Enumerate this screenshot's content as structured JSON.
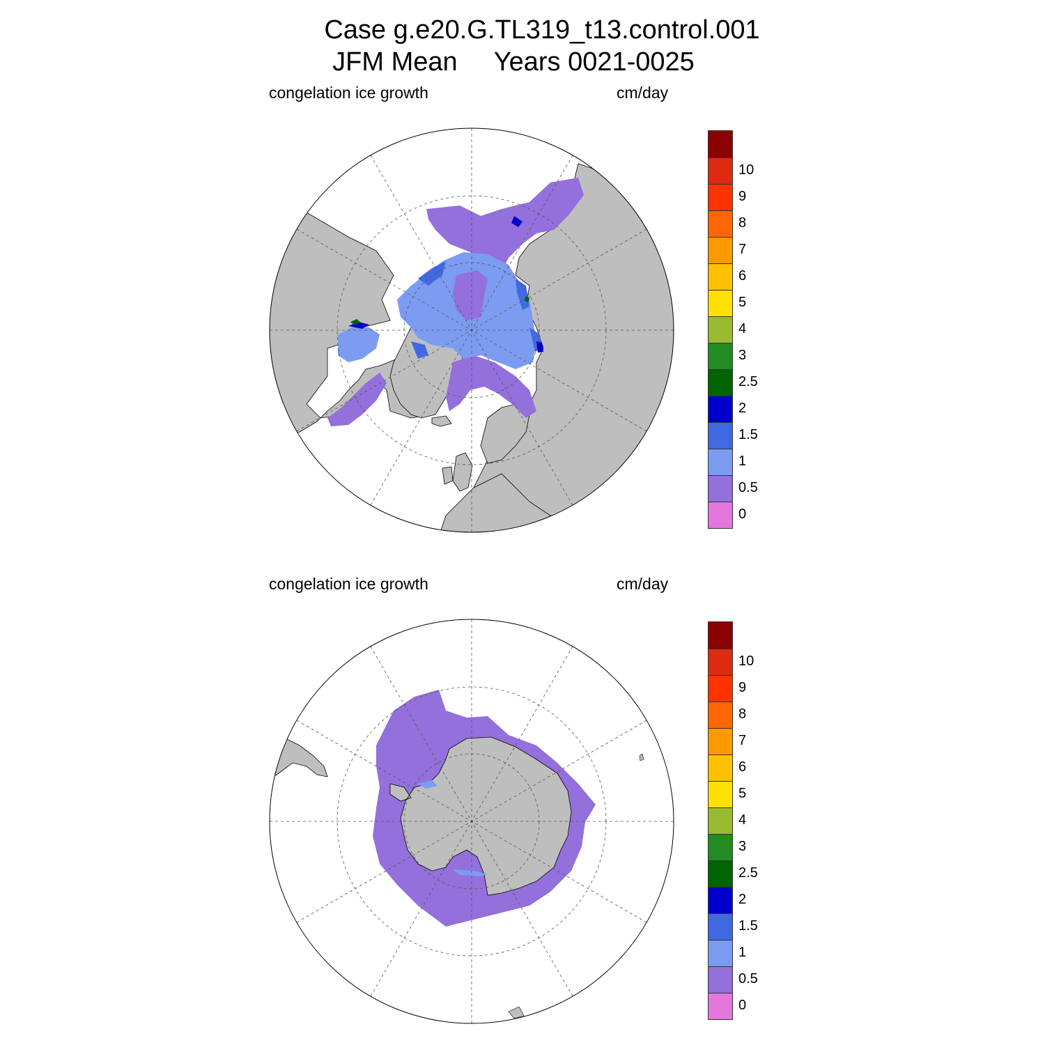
{
  "title": {
    "line1": "Case g.e20.G.TL319_t13.control.001",
    "line2": "JFM Mean     Years 0021-0025"
  },
  "panels": [
    {
      "id": "nh",
      "hemisphere": "north",
      "left_label": "congelation ice growth",
      "right_label": "cm/day"
    },
    {
      "id": "sh",
      "hemisphere": "south",
      "left_label": "congelation ice growth",
      "right_label": "cm/day"
    }
  ],
  "colorbar": {
    "labels": [
      "0",
      "0.5",
      "1",
      "1.5",
      "2",
      "2.5",
      "3",
      "4",
      "5",
      "6",
      "7",
      "8",
      "9",
      "10"
    ],
    "colors": [
      "#e377dd",
      "#9370db",
      "#7b9cf0",
      "#4169e1",
      "#0000cd",
      "#006400",
      "#228b22",
      "#9aba30",
      "#ffe000",
      "#ffc000",
      "#ff9900",
      "#ff6600",
      "#ff3300",
      "#dd2a10",
      "#8b0000"
    ]
  },
  "colors": {
    "land": "#bebebe",
    "ocean": "#ffffff",
    "grid": "#555555"
  }
}
